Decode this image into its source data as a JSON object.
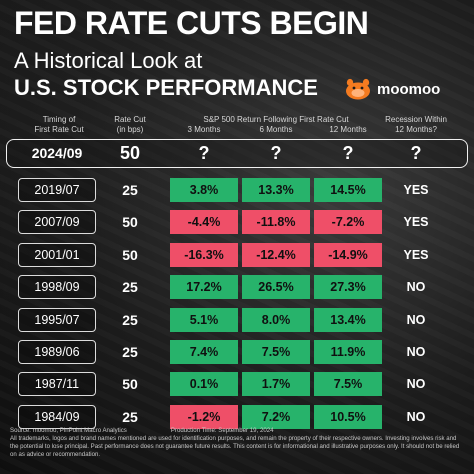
{
  "title": "FED RATE CUTS BEGIN",
  "subtitle_line1": "A Historical Look at",
  "subtitle_line2": "U.S. STOCK PERFORMANCE",
  "brand": {
    "name": "moomoo",
    "logo_icon": "moomoo-logo-icon",
    "accent": "#f47b20"
  },
  "headers": {
    "timing": [
      "Timing of",
      "First Rate Cut"
    ],
    "rate_cut": [
      "Rate Cut",
      "(in bps)"
    ],
    "sp_group": "S&P 500 Return Following First Rate Cut",
    "m3": "3 Months",
    "m6": "6 Months",
    "m12": "12 Months",
    "recession": [
      "Recession Within",
      "12 Months?"
    ]
  },
  "highlight": {
    "date": "2024/09",
    "cut": "50",
    "m3": "?",
    "m6": "?",
    "m12": "?",
    "recession": "?"
  },
  "colors": {
    "positive": "#27b36b",
    "negative": "#ef4f68"
  },
  "chart_data": {
    "type": "table",
    "columns": [
      "Timing of First Rate Cut",
      "Rate Cut (in bps)",
      "3 Months",
      "6 Months",
      "12 Months",
      "Recession Within 12 Months?"
    ],
    "rows": [
      {
        "date": "2019/07",
        "cut": "25",
        "m3": "3.8%",
        "m6": "13.3%",
        "m12": "14.5%",
        "recession": "YES",
        "v3": 3.8,
        "v6": 13.3,
        "v12": 14.5
      },
      {
        "date": "2007/09",
        "cut": "50",
        "m3": "-4.4%",
        "m6": "-11.8%",
        "m12": "-7.2%",
        "recession": "YES",
        "v3": -4.4,
        "v6": -11.8,
        "v12": -7.2
      },
      {
        "date": "2001/01",
        "cut": "50",
        "m3": "-16.3%",
        "m6": "-12.4%",
        "m12": "-14.9%",
        "recession": "YES",
        "v3": -16.3,
        "v6": -12.4,
        "v12": -14.9
      },
      {
        "date": "1998/09",
        "cut": "25",
        "m3": "17.2%",
        "m6": "26.5%",
        "m12": "27.3%",
        "recession": "NO",
        "v3": 17.2,
        "v6": 26.5,
        "v12": 27.3
      },
      {
        "date": "1995/07",
        "cut": "25",
        "m3": "5.1%",
        "m6": "8.0%",
        "m12": "13.4%",
        "recession": "NO",
        "v3": 5.1,
        "v6": 8.0,
        "v12": 13.4
      },
      {
        "date": "1989/06",
        "cut": "25",
        "m3": "7.4%",
        "m6": "7.5%",
        "m12": "11.9%",
        "recession": "NO",
        "v3": 7.4,
        "v6": 7.5,
        "v12": 11.9
      },
      {
        "date": "1987/11",
        "cut": "50",
        "m3": "0.1%",
        "m6": "1.7%",
        "m12": "7.5%",
        "recession": "NO",
        "v3": 0.1,
        "v6": 1.7,
        "v12": 7.5
      },
      {
        "date": "1984/09",
        "cut": "25",
        "m3": "-1.2%",
        "m6": "7.2%",
        "m12": "10.5%",
        "recession": "NO",
        "v3": -1.2,
        "v6": 7.2,
        "v12": 10.5
      }
    ]
  },
  "footer": {
    "source": "Source: moomoo, PinPoint Macro Analytics",
    "production": "Production Time: September 19, 2024",
    "disclaimer": "All trademarks, logos and brand names mentioned are used for identification purposes, and remain the property of their respective owners. Investing involves risk and the potential to lose principal. Past performance does not guarantee future results. This content is for informational and illustrative purposes only. It should not be relied on as advice or recommendation."
  }
}
